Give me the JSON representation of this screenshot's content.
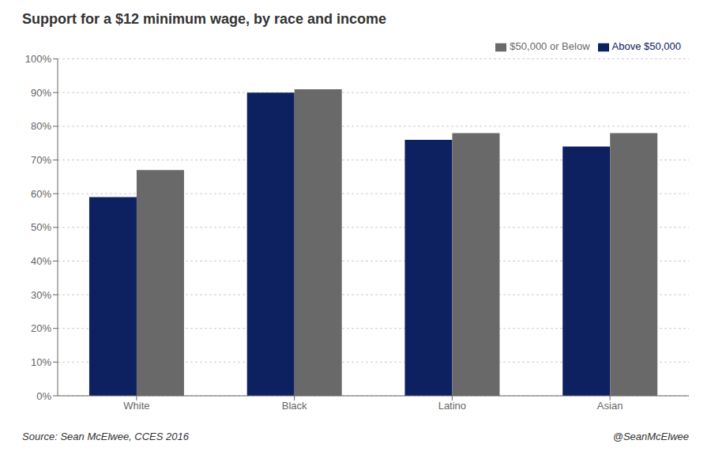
{
  "chart_data": {
    "type": "bar",
    "title": "Support for a $12 minimum wage, by race and income",
    "categories": [
      "White",
      "Black",
      "Latino",
      "Asian"
    ],
    "series": [
      {
        "name": "Above $50,000",
        "color": "#0D2060",
        "values": [
          0.59,
          0.9,
          0.76,
          0.74
        ]
      },
      {
        "name": "$50,000 or Below",
        "color": "#696969",
        "values": [
          0.67,
          0.91,
          0.78,
          0.78
        ]
      }
    ],
    "ylim": [
      0.0,
      1.0
    ],
    "yticks": [
      {
        "value": 0.0,
        "label": "0%"
      },
      {
        "value": 0.1,
        "label": "10%"
      },
      {
        "value": 0.2,
        "label": "20%"
      },
      {
        "value": 0.3,
        "label": "30%"
      },
      {
        "value": 0.4,
        "label": "40%"
      },
      {
        "value": 0.5,
        "label": "50%"
      },
      {
        "value": 0.6,
        "label": "60%"
      },
      {
        "value": 0.7,
        "label": "70%"
      },
      {
        "value": 0.8,
        "label": "80%"
      },
      {
        "value": 0.9,
        "label": "90%"
      },
      {
        "value": 1.0,
        "label": "100%"
      }
    ],
    "grid": true,
    "legend": "upper right",
    "annotations": [
      "Source: Sean McElwee, CCES 2016",
      "@SeanMcElwee"
    ]
  }
}
